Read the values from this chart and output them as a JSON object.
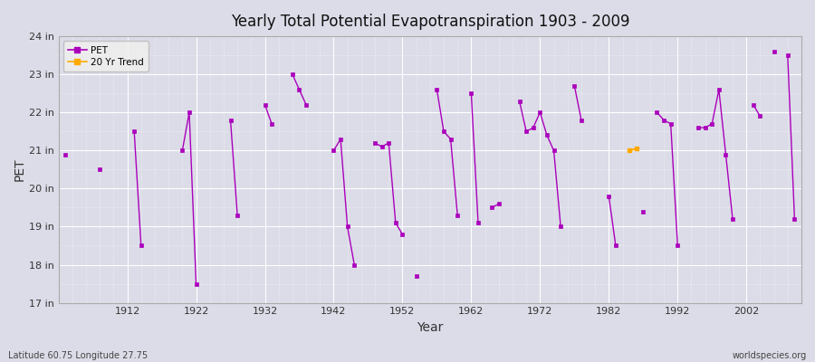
{
  "title": "Yearly Total Potential Evapotranspiration 1903 - 2009",
  "xlabel": "Year",
  "ylabel": "PET",
  "subtitle_left": "Latitude 60.75 Longitude 27.75",
  "subtitle_right": "worldspecies.org",
  "ylim": [
    17,
    24
  ],
  "yticks": [
    17,
    18,
    19,
    20,
    21,
    22,
    23,
    24
  ],
  "ytick_labels": [
    "17 in",
    "18 in",
    "19 in",
    "20 in",
    "21 in",
    "22 in",
    "23 in",
    "24 in"
  ],
  "xlim": [
    1902,
    2010
  ],
  "xticks": [
    1912,
    1922,
    1932,
    1942,
    1952,
    1962,
    1972,
    1982,
    1992,
    2002
  ],
  "bg_color": "#dcdce8",
  "pet_color": "#aa00bb",
  "trend_color": "#ffaa00",
  "pet_data": [
    [
      1903,
      20.9
    ],
    [
      1904,
      null
    ],
    [
      1905,
      null
    ],
    [
      1906,
      null
    ],
    [
      1907,
      null
    ],
    [
      1908,
      20.5
    ],
    [
      1909,
      null
    ],
    [
      1910,
      null
    ],
    [
      1911,
      null
    ],
    [
      1912,
      null
    ],
    [
      1913,
      21.5
    ],
    [
      1914,
      18.5
    ],
    [
      1915,
      null
    ],
    [
      1916,
      null
    ],
    [
      1917,
      null
    ],
    [
      1918,
      null
    ],
    [
      1919,
      null
    ],
    [
      1920,
      21.0
    ],
    [
      1921,
      22.0
    ],
    [
      1922,
      17.5
    ],
    [
      1923,
      null
    ],
    [
      1924,
      null
    ],
    [
      1925,
      null
    ],
    [
      1926,
      null
    ],
    [
      1927,
      21.8
    ],
    [
      1928,
      19.3
    ],
    [
      1929,
      null
    ],
    [
      1930,
      null
    ],
    [
      1931,
      null
    ],
    [
      1932,
      22.2
    ],
    [
      1933,
      21.7
    ],
    [
      1934,
      null
    ],
    [
      1935,
      null
    ],
    [
      1936,
      23.0
    ],
    [
      1937,
      22.6
    ],
    [
      1938,
      22.2
    ],
    [
      1939,
      null
    ],
    [
      1940,
      null
    ],
    [
      1941,
      null
    ],
    [
      1942,
      21.0
    ],
    [
      1943,
      21.3
    ],
    [
      1944,
      19.0
    ],
    [
      1945,
      18.0
    ],
    [
      1946,
      null
    ],
    [
      1947,
      null
    ],
    [
      1948,
      21.2
    ],
    [
      1949,
      21.1
    ],
    [
      1950,
      21.2
    ],
    [
      1951,
      19.1
    ],
    [
      1952,
      18.8
    ],
    [
      1953,
      null
    ],
    [
      1954,
      17.7
    ],
    [
      1955,
      null
    ],
    [
      1956,
      null
    ],
    [
      1957,
      22.6
    ],
    [
      1958,
      21.5
    ],
    [
      1959,
      21.3
    ],
    [
      1960,
      19.3
    ],
    [
      1961,
      null
    ],
    [
      1962,
      22.5
    ],
    [
      1963,
      19.1
    ],
    [
      1964,
      null
    ],
    [
      1965,
      19.5
    ],
    [
      1966,
      19.6
    ],
    [
      1967,
      null
    ],
    [
      1968,
      null
    ],
    [
      1969,
      22.3
    ],
    [
      1970,
      21.5
    ],
    [
      1971,
      21.6
    ],
    [
      1972,
      22.0
    ],
    [
      1973,
      21.4
    ],
    [
      1974,
      21.0
    ],
    [
      1975,
      19.0
    ],
    [
      1976,
      null
    ],
    [
      1977,
      22.7
    ],
    [
      1978,
      21.8
    ],
    [
      1979,
      null
    ],
    [
      1980,
      null
    ],
    [
      1981,
      null
    ],
    [
      1982,
      19.8
    ],
    [
      1983,
      18.5
    ],
    [
      1984,
      null
    ],
    [
      1985,
      null
    ],
    [
      1986,
      null
    ],
    [
      1987,
      19.4
    ],
    [
      1988,
      null
    ],
    [
      1989,
      22.0
    ],
    [
      1990,
      21.8
    ],
    [
      1991,
      21.7
    ],
    [
      1992,
      18.5
    ],
    [
      1993,
      null
    ],
    [
      1994,
      null
    ],
    [
      1995,
      21.6
    ],
    [
      1996,
      21.6
    ],
    [
      1997,
      21.7
    ],
    [
      1998,
      22.6
    ],
    [
      1999,
      20.9
    ],
    [
      2000,
      19.2
    ],
    [
      2001,
      null
    ],
    [
      2002,
      null
    ],
    [
      2003,
      22.2
    ],
    [
      2004,
      21.9
    ],
    [
      2005,
      null
    ],
    [
      2006,
      23.6
    ],
    [
      2007,
      null
    ],
    [
      2008,
      23.5
    ],
    [
      2009,
      19.2
    ]
  ],
  "trend_data": [
    [
      1985,
      21.0
    ],
    [
      1986,
      21.05
    ]
  ]
}
